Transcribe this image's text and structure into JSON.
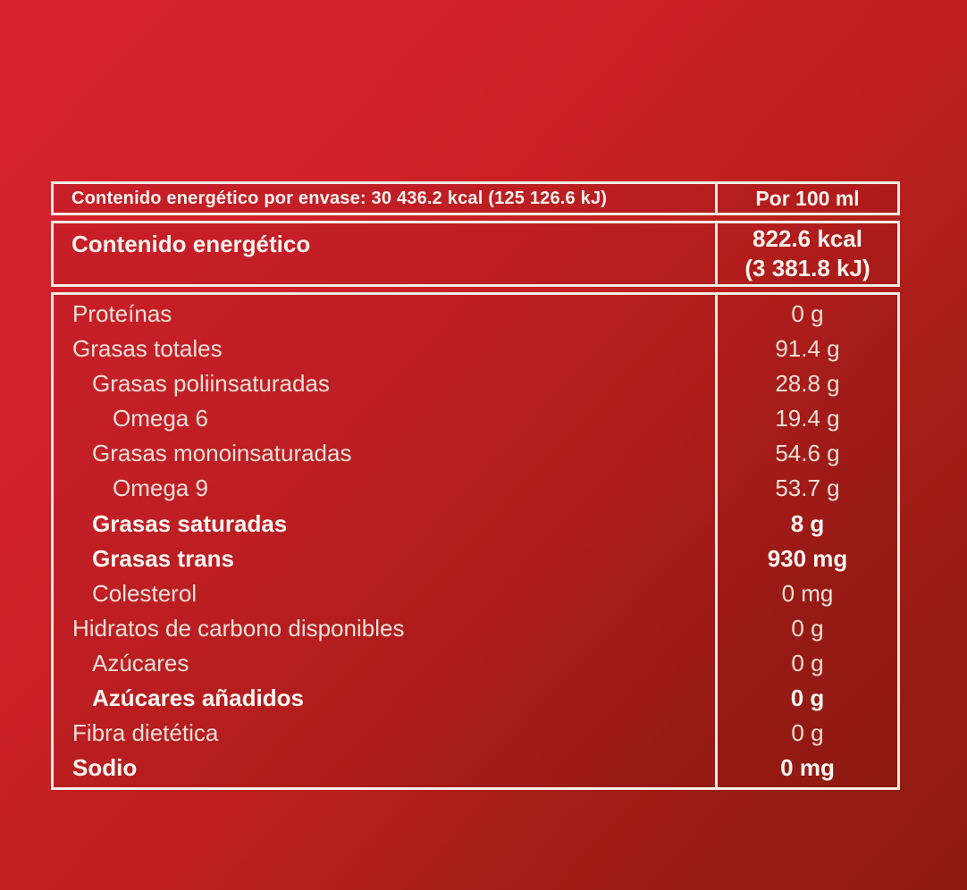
{
  "page": {
    "background_top_left_color": "#d7222e",
    "background_bottom_right_color": "#8e1b11",
    "border_color": "#f6ece6",
    "text_color": "#f1e1da",
    "bold_text_color": "#fdf7f4"
  },
  "table": {
    "header": {
      "per_package_label": "Contenido energético por envase: 30 436.2 kcal (125 126.6 kJ)",
      "column_label": "Por 100 ml"
    },
    "energy_row": {
      "label": "Contenido energético",
      "value_line1": "822.6 kcal",
      "value_line2": "(3 381.8 kJ)"
    },
    "rows": [
      {
        "label": "Proteínas",
        "value": "0 g",
        "indent": 0,
        "bold": false
      },
      {
        "label": "Grasas totales",
        "value": "91.4 g",
        "indent": 0,
        "bold": false
      },
      {
        "label": "Grasas poliinsaturadas",
        "value": "28.8 g",
        "indent": 1,
        "bold": false
      },
      {
        "label": "Omega 6",
        "value": "19.4 g",
        "indent": 2,
        "bold": false
      },
      {
        "label": "Grasas monoinsaturadas",
        "value": "54.6 g",
        "indent": 1,
        "bold": false
      },
      {
        "label": "Omega 9",
        "value": "53.7 g",
        "indent": 2,
        "bold": false
      },
      {
        "label": "Grasas saturadas",
        "value": "8 g",
        "indent": 1,
        "bold": true
      },
      {
        "label": "Grasas trans",
        "value": "930 mg",
        "indent": 1,
        "bold": true
      },
      {
        "label": "Colesterol",
        "value": "0 mg",
        "indent": 1,
        "bold": false
      },
      {
        "label": "Hidratos de carbono disponibles",
        "value": "0 g",
        "indent": 0,
        "bold": false
      },
      {
        "label": "Azúcares",
        "value": "0 g",
        "indent": 1,
        "bold": false
      },
      {
        "label": "Azúcares añadidos",
        "value": "0 g",
        "indent": 1,
        "bold": true
      },
      {
        "label": "Fibra dietética",
        "value": "0 g",
        "indent": 0,
        "bold": false
      },
      {
        "label": "Sodio",
        "value": "0 mg",
        "indent": 0,
        "bold": true
      }
    ]
  }
}
